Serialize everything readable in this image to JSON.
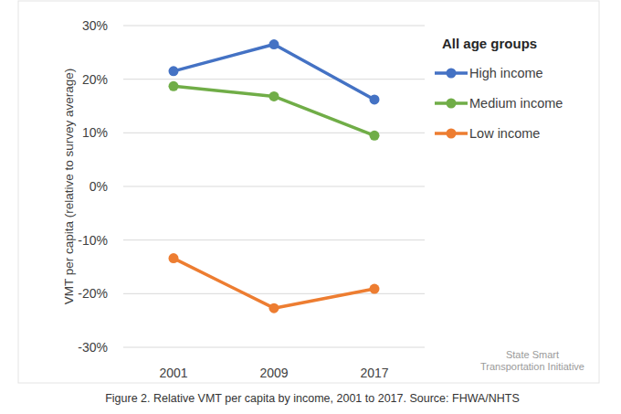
{
  "chart_data": {
    "type": "line",
    "title": "Figure 2. Relative VMT per capita by income, 2001 to 2017. Source: FHWA/NHTS",
    "y_label": "VMT per capita (relative to survey average)",
    "legend_title": "All age groups",
    "annotations": [
      "State Smart",
      "Transportation Initiative"
    ],
    "categories": [
      "2001",
      "2009",
      "2017"
    ],
    "series": [
      {
        "name": "High income",
        "color": "#4472c4",
        "values": [
          21.5,
          26.5,
          16.2
        ]
      },
      {
        "name": "Medium income",
        "color": "#70ad47",
        "values": [
          18.7,
          16.8,
          9.5
        ]
      },
      {
        "name": "Low income",
        "color": "#ed7d31",
        "values": [
          -13.4,
          -22.7,
          -19.1
        ]
      }
    ],
    "ylim": [
      -30,
      30
    ],
    "yticks": [
      {
        "value": -30,
        "label": "-30%"
      },
      {
        "value": -20,
        "label": "-20%"
      },
      {
        "value": -10,
        "label": "-10%"
      },
      {
        "value": 0,
        "label": "0%"
      },
      {
        "value": 10,
        "label": "10%"
      },
      {
        "value": 20,
        "label": "20%"
      },
      {
        "value": 30,
        "label": "30%"
      }
    ],
    "grid": true,
    "legend": "right",
    "marker": "circle"
  }
}
